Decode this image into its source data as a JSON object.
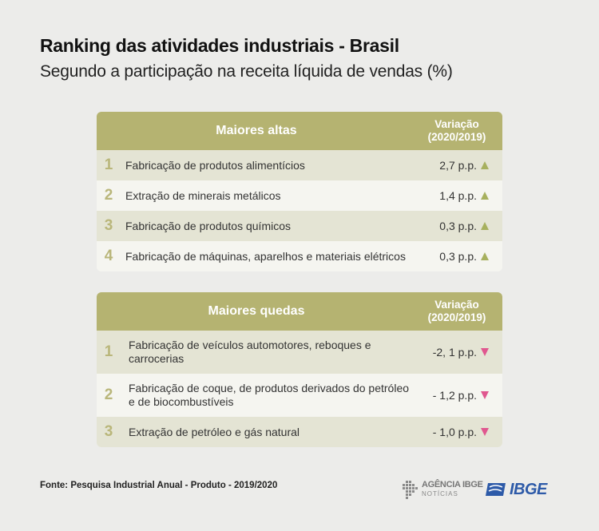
{
  "title": "Ranking das atividades industriais - Brasil",
  "subtitle": "Segundo a participação na receita líquida de vendas (%)",
  "chart_data": {
    "type": "table",
    "tables": [
      {
        "header": "Maiores altas",
        "variation_header_line1": "Variação",
        "variation_header_line2": "(2020/2019)",
        "direction": "up",
        "rows": [
          {
            "rank": "1",
            "label": "Fabricação de produtos alimentícios",
            "value": "2,7 p.p."
          },
          {
            "rank": "2",
            "label": "Extração de minerais metálicos",
            "value": "1,4 p.p."
          },
          {
            "rank": "3",
            "label": "Fabricação de produtos químicos",
            "value": "0,3 p.p."
          },
          {
            "rank": "4",
            "label": "Fabricação de máquinas, aparelhos e materiais elétricos",
            "value": "0,3 p.p."
          }
        ]
      },
      {
        "header": "Maiores quedas",
        "variation_header_line1": "Variação",
        "variation_header_line2": "(2020/2019)",
        "direction": "down",
        "rows": [
          {
            "rank": "1",
            "label": "Fabricação de veículos automotores, reboques e carrocerias",
            "value": "-2, 1 p.p."
          },
          {
            "rank": "2",
            "label": "Fabricação de coque, de produtos derivados do petróleo e de biocombustíveis",
            "value": "- 1,2 p.p."
          },
          {
            "rank": "3",
            "label": "Extração de petróleo e gás natural",
            "value": "- 1,0 p.p."
          }
        ]
      }
    ]
  },
  "footer": {
    "source": "Fonte: Pesquisa Industrial Anual - Produto - 2019/2020",
    "agencia_main": "AGÊNCIA IBGE",
    "agencia_sub": "NOTÍCIAS",
    "ibge": "IBGE"
  },
  "colors": {
    "header_bg": "#b5b371",
    "rank": "#b9b67a",
    "up_arrow": "#a7b05e",
    "down_arrow": "#e0578f",
    "ibge_blue": "#2d5aa8"
  },
  "icons": {
    "up": "triangle-up-icon",
    "down": "triangle-down-icon"
  }
}
